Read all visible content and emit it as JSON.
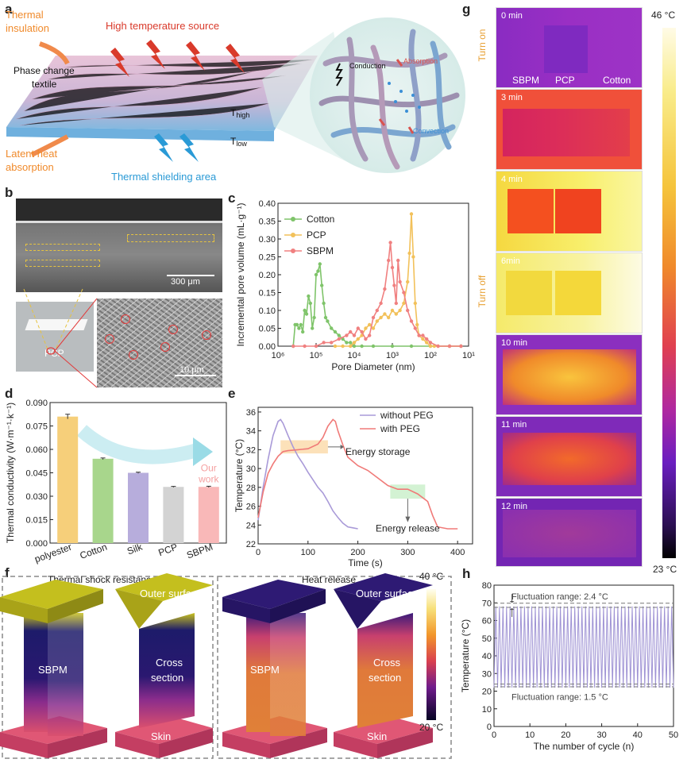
{
  "panels": {
    "a": "a",
    "b": "b",
    "c": "c",
    "d": "d",
    "e": "e",
    "f": "f",
    "g": "g",
    "h": "h"
  },
  "panel_a": {
    "thermal_insulation": [
      "Thermal",
      "insulation"
    ],
    "high_temp_source": "High temperature source",
    "phase_change_textile": [
      "Phase change",
      "textile"
    ],
    "t_high": "T",
    "t_high_sub": "high",
    "t_low": "T",
    "t_low_sub": "low",
    "latent_heat": [
      "Latent heat",
      "absorption"
    ],
    "thermal_shielding": "Thermal shielding area",
    "inset_conduction": "Conduction",
    "inset_absorption": "Absorption",
    "inset_convection": "Convection"
  },
  "panel_b": {
    "scale_top": "300 μm",
    "scale_bottom": "10 μm",
    "sample_label": "PCP"
  },
  "panel_f": {
    "title_left": "Thermal shock resistance",
    "title_right": "Heat release",
    "sbpm_left": "SBPM",
    "outer_surface_left": "Outer surface",
    "cross_section_left": [
      "Cross",
      "section"
    ],
    "skin_left": "Skin",
    "sbpm_right": "SBPM",
    "outer_surface_right": "Outer surface",
    "cross_section_right": [
      "Cross",
      "section"
    ],
    "skin_right": "Skin",
    "cbar_max": "40 °C",
    "cbar_min": "20 °C"
  },
  "panel_g": {
    "frames": [
      {
        "time": "0 min"
      },
      {
        "time": "3 min"
      },
      {
        "time": "4 min"
      },
      {
        "time": "6min"
      },
      {
        "time": "10 min"
      },
      {
        "time": "11 min"
      },
      {
        "time": "12 min"
      }
    ],
    "sample_labels": [
      "SBPM",
      "PCP",
      "Cotton"
    ],
    "turn_on": "Turn on",
    "turn_off": "Turn off",
    "cbar_max": "46 °C",
    "cbar_min": "23 °C"
  },
  "chart_data": [
    {
      "id": "c",
      "type": "line",
      "xlabel": "Pore Diameter (nm)",
      "ylabel": "Incremental pore volume (mL·g⁻¹)",
      "xscale": "log-reversed",
      "xlim": [
        1000000,
        10
      ],
      "ylim": [
        0,
        0.4
      ],
      "xticks": [
        "10⁶",
        "10⁵",
        "10⁴",
        "10³",
        "10²",
        "10¹"
      ],
      "yticks": [
        "0.00",
        "0.05",
        "0.10",
        "0.15",
        "0.20",
        "0.25",
        "0.30",
        "0.35",
        "0.40"
      ],
      "legend": "top-left",
      "series": [
        {
          "name": "Cotton",
          "color": "#7fc46a",
          "log10x": [
            5.6,
            5.55,
            5.5,
            5.45,
            5.4,
            5.35,
            5.3,
            5.25,
            5.2,
            5.15,
            5.1,
            5.05,
            5.0,
            4.95,
            4.9,
            4.85,
            4.8,
            4.75,
            4.7,
            4.6,
            4.5,
            4.4,
            4.3,
            4.2,
            4.1,
            4.0,
            3.8,
            3.5,
            3.0,
            2.5,
            2.0,
            1.5,
            1.2
          ],
          "y": [
            0.0,
            0.06,
            0.06,
            0.05,
            0.06,
            0.04,
            0.1,
            0.09,
            0.14,
            0.12,
            0.05,
            0.08,
            0.2,
            0.21,
            0.23,
            0.17,
            0.12,
            0.08,
            0.07,
            0.05,
            0.04,
            0.03,
            0.02,
            0.01,
            0.01,
            0.0,
            0.0,
            0.0,
            0.0,
            0.0,
            0.0,
            0.0,
            0.0
          ]
        },
        {
          "name": "PCP",
          "color": "#f2c15a",
          "log10x": [
            4.5,
            4.3,
            4.1,
            4.0,
            3.9,
            3.8,
            3.7,
            3.6,
            3.5,
            3.4,
            3.3,
            3.2,
            3.1,
            3.0,
            2.9,
            2.8,
            2.7,
            2.6,
            2.55,
            2.5,
            2.45,
            2.4,
            2.35,
            2.3,
            2.2,
            2.1,
            2.0,
            1.9,
            1.8,
            1.5,
            1.2
          ],
          "y": [
            0.0,
            0.0,
            0.0,
            0.01,
            0.02,
            0.03,
            0.05,
            0.06,
            0.05,
            0.07,
            0.08,
            0.09,
            0.08,
            0.1,
            0.09,
            0.1,
            0.12,
            0.18,
            0.26,
            0.37,
            0.25,
            0.12,
            0.06,
            0.03,
            0.02,
            0.01,
            0.0,
            0.0,
            0.0,
            0.0,
            0.0
          ]
        },
        {
          "name": "SBPM",
          "color": "#f08080",
          "log10x": [
            5.6,
            5.3,
            5.0,
            4.8,
            4.6,
            4.4,
            4.2,
            4.1,
            4.0,
            3.9,
            3.8,
            3.7,
            3.6,
            3.5,
            3.4,
            3.3,
            3.2,
            3.1,
            3.05,
            3.0,
            2.95,
            2.9,
            2.85,
            2.8,
            2.7,
            2.6,
            2.5,
            2.4,
            2.3,
            2.2,
            2.1,
            2.0,
            1.8,
            1.5,
            1.2
          ],
          "y": [
            0.0,
            0.0,
            0.0,
            0.01,
            0.01,
            0.02,
            0.03,
            0.04,
            0.03,
            0.05,
            0.04,
            0.02,
            0.03,
            0.08,
            0.1,
            0.12,
            0.16,
            0.24,
            0.29,
            0.22,
            0.17,
            0.12,
            0.24,
            0.18,
            0.15,
            0.1,
            0.07,
            0.05,
            0.03,
            0.03,
            0.02,
            0.01,
            0.0,
            0.0,
            0.0
          ]
        }
      ]
    },
    {
      "id": "d",
      "type": "bar",
      "ylabel": "Thermal conductivity (W·m⁻¹·k⁻¹)",
      "ylim": [
        0,
        0.09
      ],
      "yticks": [
        "0.000",
        "0.015",
        "0.030",
        "0.045",
        "0.060",
        "0.075",
        "0.090"
      ],
      "categories": [
        "polyester",
        "Cotton",
        "Silk",
        "PCP",
        "SBPM"
      ],
      "values": [
        0.081,
        0.054,
        0.045,
        0.036,
        0.036
      ],
      "errors": [
        0.0015,
        0.0005,
        0.0004,
        0.0003,
        0.0004
      ],
      "colors": [
        "#f6cf7a",
        "#a8d68c",
        "#b7addc",
        "#d3d3d3",
        "#f9b8b8"
      ],
      "annotation": [
        "Our",
        "work"
      ]
    },
    {
      "id": "e",
      "type": "line",
      "xlabel": "Time (s)",
      "ylabel": "Temperature (°C)",
      "xlim": [
        0,
        430
      ],
      "ylim": [
        22,
        36.5
      ],
      "xticks": [
        "0",
        "100",
        "200",
        "300",
        "400"
      ],
      "yticks": [
        "22",
        "24",
        "26",
        "28",
        "30",
        "32",
        "34",
        "36"
      ],
      "legend": "top-right",
      "annotations": [
        "Energy storage",
        "Energy release"
      ],
      "series": [
        {
          "name": "without PEG",
          "color": "#a99ad8",
          "x": [
            0,
            10,
            20,
            30,
            40,
            45,
            50,
            60,
            70,
            80,
            90,
            100,
            110,
            120,
            130,
            140,
            150,
            160,
            170,
            180,
            190,
            200
          ],
          "y": [
            24.5,
            28,
            31,
            33.5,
            35,
            35.2,
            34.8,
            33.5,
            32.3,
            31.3,
            30.5,
            29.6,
            28.8,
            28,
            27.4,
            26.5,
            25.5,
            24.8,
            24.2,
            23.8,
            23.7,
            23.6
          ]
        },
        {
          "name": "with PEG",
          "color": "#f07a78",
          "x": [
            0,
            10,
            20,
            30,
            40,
            50,
            60,
            80,
            100,
            120,
            130,
            140,
            150,
            155,
            160,
            170,
            180,
            200,
            220,
            240,
            260,
            280,
            300,
            320,
            340,
            350,
            360,
            380,
            400
          ],
          "y": [
            24.8,
            27.5,
            29.5,
            30.5,
            31.3,
            31.8,
            31.9,
            32.0,
            32.1,
            32.6,
            33.3,
            34.5,
            35.2,
            35.0,
            34.0,
            32.5,
            31.2,
            30.3,
            29.8,
            29,
            28.2,
            27.8,
            27.8,
            27.3,
            26.5,
            25,
            23.8,
            23.6,
            23.6
          ]
        }
      ]
    },
    {
      "id": "h",
      "type": "line",
      "xlabel": "The number of cycle (n)",
      "ylabel": "Temperature (°C)",
      "xlim": [
        0,
        50
      ],
      "ylim": [
        0,
        80
      ],
      "xticks": [
        "0",
        "10",
        "20",
        "30",
        "40",
        "50"
      ],
      "yticks": [
        "0",
        "10",
        "20",
        "30",
        "40",
        "50",
        "60",
        "70",
        "80"
      ],
      "series": [
        {
          "name": "cycles",
          "color": "#9f93d4",
          "cycles": 50,
          "high": 68,
          "low": 22
        }
      ],
      "annotations": [
        "Fluctuation range: 2.4 °C",
        "Fluctuation range: 1.5 °C"
      ]
    }
  ]
}
